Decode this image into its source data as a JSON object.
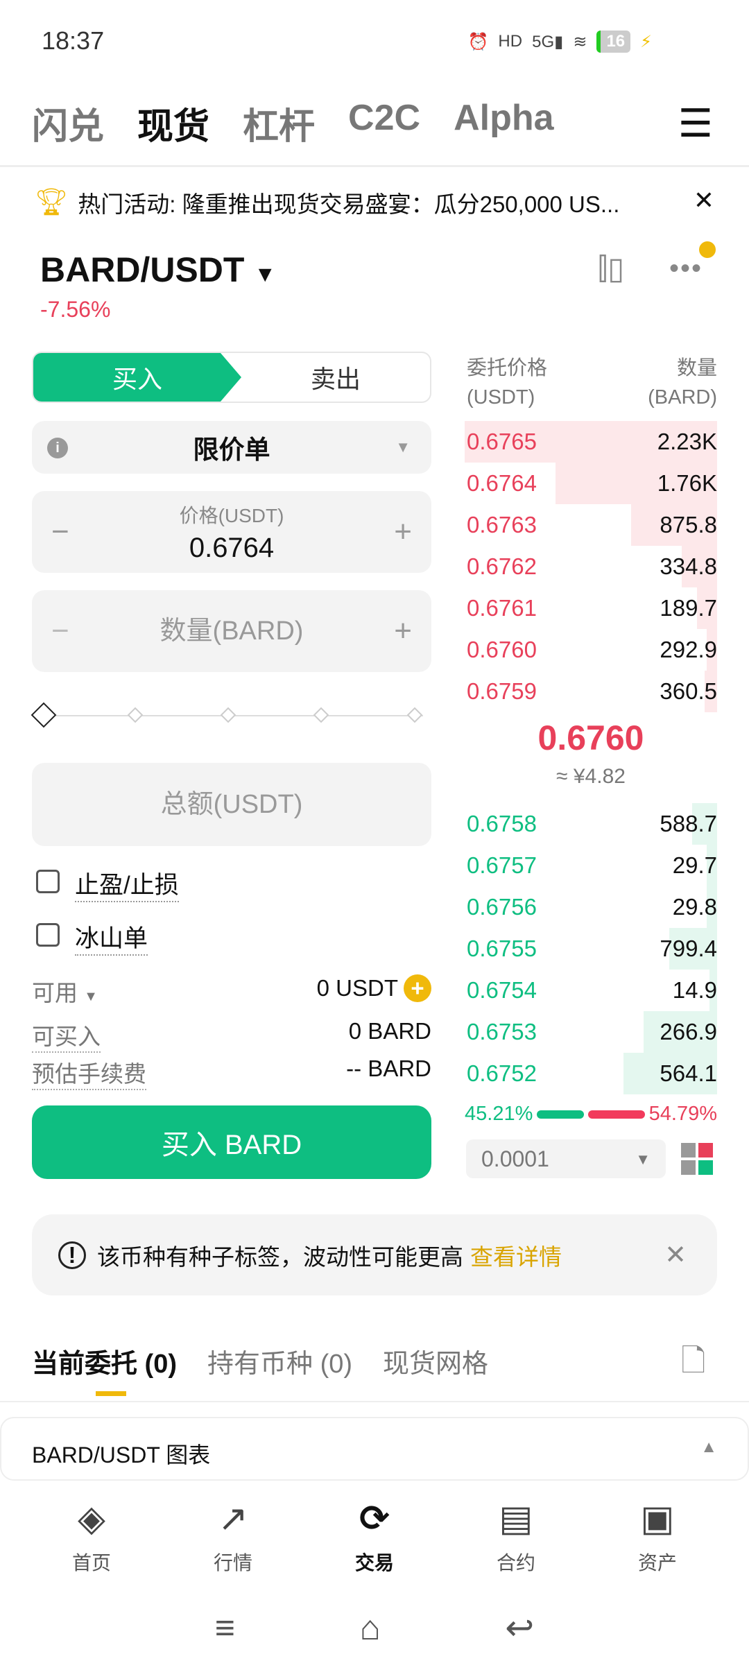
{
  "status": {
    "time": "18:37",
    "battery": "16"
  },
  "tabs": [
    "闪兑",
    "现货",
    "杠杆",
    "C2C",
    "Alpha"
  ],
  "banner": {
    "text": "热门活动: 隆重推出现货交易盛宴：瓜分250,000 US..."
  },
  "pair": {
    "symbol": "BARD/USDT",
    "change": "-7.56%"
  },
  "form": {
    "buy": "买入",
    "sell": "卖出",
    "order_type": "限价单",
    "price_label": "价格(USDT)",
    "price_value": "0.6764",
    "qty_placeholder": "数量(BARD)",
    "total_placeholder": "总额(USDT)",
    "slider_percent": 0,
    "tp_sl": "止盈/止损",
    "iceberg": "冰山单",
    "avail_label": "可用",
    "avail_value": "0 USDT",
    "can_buy_label": "可买入",
    "can_buy_value": "0 BARD",
    "fee_label": "预估手续费",
    "fee_value": "-- BARD",
    "buy_button": "买入 BARD"
  },
  "orderbook": {
    "price_header": "委托价格",
    "price_unit": "(USDT)",
    "qty_header": "数量",
    "qty_unit": "(BARD)",
    "asks": [
      {
        "p": "0.6765",
        "q": "2.23K",
        "depth": 1.0
      },
      {
        "p": "0.6764",
        "q": "1.76K",
        "depth": 0.64
      },
      {
        "p": "0.6763",
        "q": "875.8",
        "depth": 0.34
      },
      {
        "p": "0.6762",
        "q": "334.8",
        "depth": 0.14
      },
      {
        "p": "0.6761",
        "q": "189.7",
        "depth": 0.08
      },
      {
        "p": "0.6760",
        "q": "292.9",
        "depth": 0.04
      },
      {
        "p": "0.6759",
        "q": "360.5",
        "depth": 0.05
      }
    ],
    "mid": "0.6760",
    "mid_cny": "≈ ¥4.82",
    "bids": [
      {
        "p": "0.6758",
        "q": "588.7",
        "depth": 0.1
      },
      {
        "p": "0.6757",
        "q": "29.7",
        "depth": 0.04
      },
      {
        "p": "0.6756",
        "q": "29.8",
        "depth": 0.04
      },
      {
        "p": "0.6755",
        "q": "799.4",
        "depth": 0.19
      },
      {
        "p": "0.6754",
        "q": "14.9",
        "depth": 0.03
      },
      {
        "p": "0.6753",
        "q": "266.9",
        "depth": 0.29
      },
      {
        "p": "0.6752",
        "q": "564.1",
        "depth": 0.37
      }
    ],
    "buy_ratio": "45.21%",
    "sell_ratio": "54.79%",
    "precision": "0.0001"
  },
  "notice": {
    "text": "该币种有种子标签，波动性可能更高",
    "link": "查看详情"
  },
  "bottom_tabs": [
    "当前委托 (0)",
    "持有币种 (0)",
    "现货网格"
  ],
  "chart_bar": "BARD/USDT 图表",
  "nav": [
    "首页",
    "行情",
    "交易",
    "合约",
    "资产"
  ],
  "colors": {
    "green": "#0ebe81",
    "red": "#e8405a",
    "accent": "#f0b90b"
  }
}
